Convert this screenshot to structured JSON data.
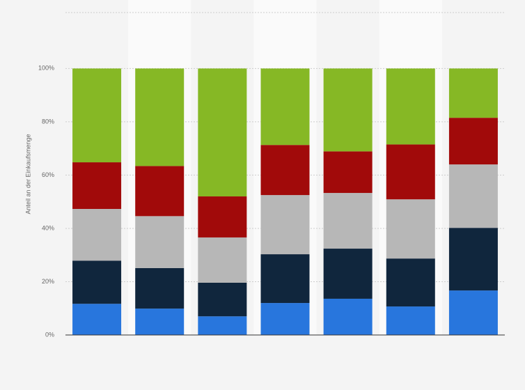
{
  "chart_data": {
    "type": "stacked-bar",
    "y_label": "Anteil an der Einkaufsmenge",
    "categories": [
      null,
      null,
      null,
      null,
      null,
      null,
      null
    ],
    "series": [
      {
        "color": "#2876dd",
        "values": [
          11.7,
          9.9,
          7.0,
          12.0,
          13.6,
          10.7,
          16.7
        ]
      },
      {
        "color": "#10263d",
        "values": [
          16.2,
          15.2,
          12.6,
          18.3,
          18.8,
          18.0,
          23.5
        ]
      },
      {
        "color": "#b7b7b7",
        "values": [
          19.4,
          19.5,
          17.0,
          22.2,
          20.9,
          22.2,
          23.8
        ]
      },
      {
        "color": "#a10a0a",
        "values": [
          17.5,
          18.8,
          15.4,
          18.8,
          15.6,
          20.6,
          17.5
        ]
      },
      {
        "color": "#86b825",
        "values": [
          35.2,
          36.6,
          48.0,
          28.7,
          31.1,
          28.5,
          18.5
        ]
      }
    ],
    "ylim": [
      0,
      121
    ],
    "yticks": [
      {
        "value": 0,
        "label": "0%"
      },
      {
        "value": 20,
        "label": "20%"
      },
      {
        "value": 40,
        "label": "40%"
      },
      {
        "value": 60,
        "label": "60%"
      },
      {
        "value": 80,
        "label": "80%"
      },
      {
        "value": 100,
        "label": "100%"
      }
    ],
    "grid": true
  }
}
